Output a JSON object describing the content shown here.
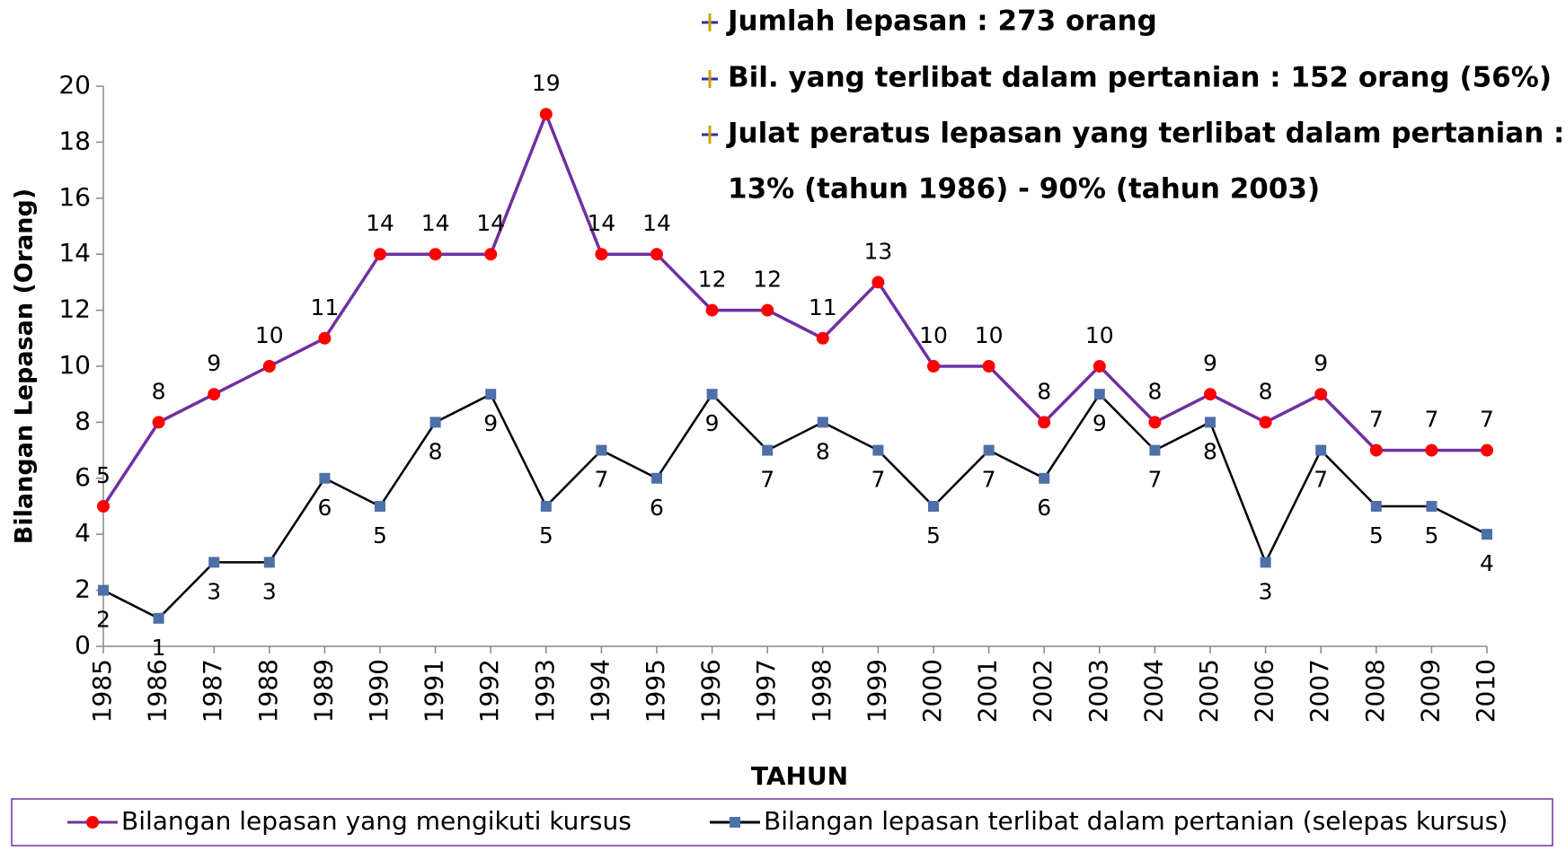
{
  "chart_data": {
    "type": "line",
    "notes": [
      "Jumlah lepasan : 273 orang",
      "Bil. yang terlibat dalam pertanian : 152 orang (56%)",
      "Julat peratus lepasan yang terlibat dalam pertanian :",
      "13%  (tahun 1986) - 90% (tahun 2003)"
    ],
    "xlabel": "TAHUN",
    "ylabel": "Bilangan Lepasan (Orang)",
    "categories": [
      "1985",
      "1986",
      "1987",
      "1988",
      "1989",
      "1990",
      "1991",
      "1992",
      "1993",
      "1994",
      "1995",
      "1996",
      "1997",
      "1998",
      "1999",
      "2000",
      "2001",
      "2002",
      "2003",
      "2004",
      "2005",
      "2006",
      "2007",
      "2008",
      "2009",
      "2010"
    ],
    "series": [
      {
        "name": "Bilangan lepasan yang mengikuti kursus",
        "color": "#7030a0",
        "marker_color": "#ff0000",
        "marker": "circle",
        "values": [
          5,
          8,
          9,
          10,
          11,
          14,
          14,
          14,
          19,
          14,
          14,
          12,
          12,
          11,
          13,
          10,
          10,
          8,
          10,
          8,
          9,
          8,
          9,
          7,
          7,
          7
        ]
      },
      {
        "name": "Bilangan lepasan terlibat dalam pertanian (selepas kursus)",
        "color": "#000000",
        "marker_color": "#4f6fa8",
        "marker": "square",
        "values": [
          2,
          1,
          3,
          3,
          6,
          5,
          8,
          9,
          5,
          7,
          6,
          9,
          7,
          8,
          7,
          5,
          7,
          6,
          9,
          7,
          8,
          3,
          7,
          5,
          5,
          4
        ]
      }
    ],
    "ylim": [
      0,
      20
    ],
    "yticks": [
      0,
      2,
      4,
      6,
      8,
      10,
      12,
      14,
      16,
      18,
      20
    ],
    "grid": false,
    "legend": "bottom"
  }
}
